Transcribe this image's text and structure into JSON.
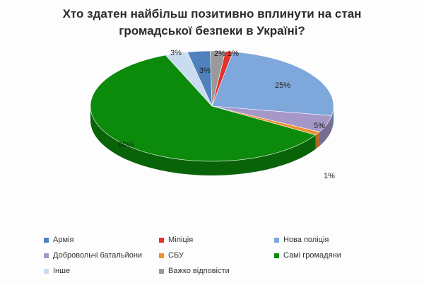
{
  "chart_data": {
    "type": "pie",
    "title_lines": [
      "Хто здатен найбільш позитивно вплинути на стан",
      "громадської безпеки в Україні?"
    ],
    "legend_position": "bottom",
    "slices": [
      {
        "label": "Армія",
        "value": 3,
        "value_label": "3%",
        "color": "#4f81bd"
      },
      {
        "label": "Міліція",
        "value": 1,
        "value_label": "1%",
        "color": "#e0332c"
      },
      {
        "label": "Нова поліція",
        "value": 25,
        "value_label": "25%",
        "color": "#7ea7dc"
      },
      {
        "label": "Добровольчі батальйони",
        "value": 5,
        "value_label": "5%",
        "color": "#a597c8"
      },
      {
        "label": "СБУ",
        "value": 1,
        "value_label": "1%",
        "color": "#f0902f"
      },
      {
        "label": "Самі громадяни",
        "value": 60,
        "value_label": "60%",
        "color": "#0c8a0c"
      },
      {
        "label": "Інше",
        "value": 3,
        "value_label": "3%",
        "color": "#c9dcf0"
      },
      {
        "label": "Важко відповісти",
        "value": 2,
        "value_label": "2%",
        "color": "#9a9a9a"
      }
    ]
  }
}
